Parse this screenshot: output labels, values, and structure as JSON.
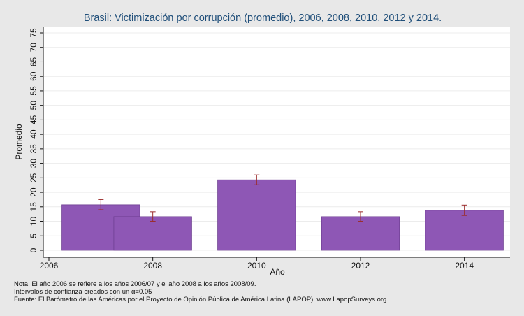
{
  "chart_data": {
    "type": "bar",
    "title": "Brasil: Victimización por corrupción (promedio), 2006, 2008, 2010, 2012 y 2014.",
    "xlabel": "Año",
    "ylabel": "Promedio",
    "xlim": [
      2006,
      2015
    ],
    "ylim": [
      0,
      75
    ],
    "x_ticks": [
      "2006",
      "2008",
      "2010",
      "2012",
      "2014"
    ],
    "y_ticks": [
      "0",
      "5",
      "10",
      "15",
      "20",
      "25",
      "30",
      "35",
      "40",
      "45",
      "50",
      "55",
      "60",
      "65",
      "70",
      "75"
    ],
    "grid": true,
    "bar_color": "#8e57b5",
    "error_bar_color": "#9b2c2c",
    "series": [
      {
        "points": [
          {
            "x_start": 2006.25,
            "x_end": 2007.75,
            "value": 15.7,
            "ci_low": 14.0,
            "ci_high": 17.5
          },
          {
            "x_start": 2007.25,
            "x_end": 2008.75,
            "value": 11.6,
            "ci_low": 10.0,
            "ci_high": 13.3
          },
          {
            "x_start": 2009.25,
            "x_end": 2010.75,
            "value": 24.3,
            "ci_low": 22.6,
            "ci_high": 26.0
          },
          {
            "x_start": 2011.25,
            "x_end": 2012.75,
            "value": 11.6,
            "ci_low": 10.0,
            "ci_high": 13.3
          },
          {
            "x_start": 2013.25,
            "x_end": 2014.75,
            "value": 13.8,
            "ci_low": 12.0,
            "ci_high": 15.6
          }
        ]
      }
    ]
  },
  "notes": {
    "line1": "Nota: El año 2006 se refiere a los años 2006/07 y el año 2008 a los años 2008/09.",
    "line2": "Intervalos de confianza creados con un α=0.05",
    "line3": "Fuente: El Barómetro de las Américas por el Proyecto de Opinión Pública de América Latina (LAPOP), www.LapopSurveys.org."
  }
}
